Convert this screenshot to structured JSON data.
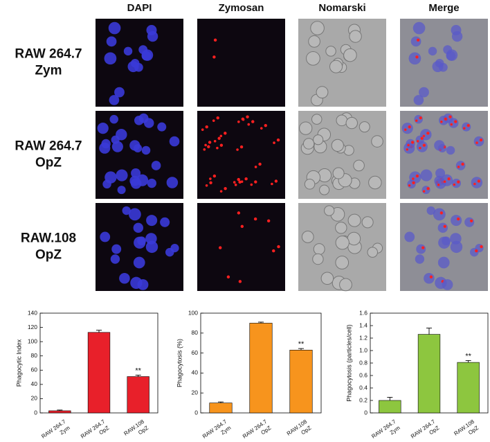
{
  "figure": {
    "column_headers": [
      "DAPI",
      "Zymosan",
      "Nomarski",
      "Merge"
    ],
    "row_labels": [
      [
        "RAW 264.7",
        "Zym"
      ],
      [
        "RAW 264.7",
        "OpZ"
      ],
      [
        "RAW.108",
        "OpZ"
      ]
    ]
  },
  "chart_data": [
    {
      "type": "bar",
      "y_label": "Phagocytic Index",
      "categories": [
        [
          "RAW 264.7",
          "Zym"
        ],
        [
          "RAW 264.7",
          "OpZ"
        ],
        [
          "RAW.108",
          "OpZ"
        ]
      ],
      "values": [
        3,
        113,
        51
      ],
      "errors": [
        1,
        3,
        2
      ],
      "bar_annotations": [
        null,
        null,
        "**"
      ],
      "color": "#e8202a",
      "ylim": [
        0,
        140
      ],
      "yticks": [
        0,
        20,
        40,
        60,
        80,
        100,
        120,
        140
      ]
    },
    {
      "type": "bar",
      "y_label": "Phagocytosis (%)",
      "categories": [
        [
          "RAW 264.7",
          "Zym"
        ],
        [
          "RAW 264.7",
          "OpZ"
        ],
        [
          "RAW.108",
          "OpZ"
        ]
      ],
      "values": [
        10,
        90,
        63
      ],
      "errors": [
        1,
        1,
        1.5
      ],
      "bar_annotations": [
        null,
        null,
        "**"
      ],
      "color": "#f7941d",
      "ylim": [
        0,
        100
      ],
      "yticks": [
        0,
        20,
        40,
        60,
        80,
        100
      ]
    },
    {
      "type": "bar",
      "y_label": "Phagocytosis (particles/cell)",
      "categories": [
        [
          "RAW 264.7",
          "Zym"
        ],
        [
          "RAW 264.7",
          "OpZ"
        ],
        [
          "RAW.108",
          "OpZ"
        ]
      ],
      "values": [
        0.2,
        1.26,
        0.81
      ],
      "errors": [
        0.05,
        0.1,
        0.03
      ],
      "bar_annotations": [
        null,
        null,
        "**"
      ],
      "color": "#8dc63f",
      "ylim": [
        0,
        1.6
      ],
      "yticks": [
        0,
        0.2,
        0.4,
        0.6,
        0.8,
        {
          "value": 1,
          "label": "1.0"
        },
        1.2,
        1.4,
        1.6
      ]
    }
  ]
}
